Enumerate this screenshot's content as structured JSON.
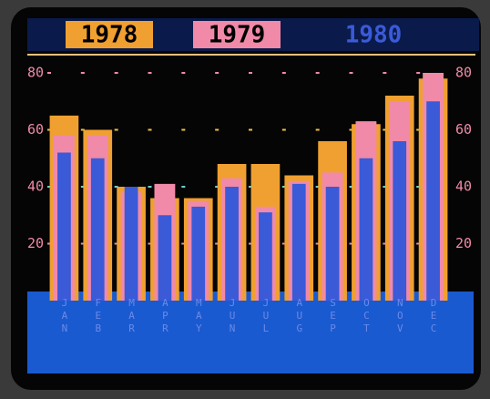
{
  "chart_data": {
    "type": "bar",
    "categories": [
      "JAN",
      "FEB",
      "MAR",
      "APR",
      "MAY",
      "JUN",
      "JUL",
      "AUG",
      "SEP",
      "OCT",
      "NOV",
      "DEC"
    ],
    "series": [
      {
        "name": "1978",
        "color": "#f0a030",
        "values": [
          65,
          60,
          40,
          36,
          36,
          48,
          48,
          44,
          56,
          62,
          72,
          78
        ]
      },
      {
        "name": "1979",
        "color": "#f08aa8",
        "values": [
          58,
          58,
          38,
          41,
          35,
          43,
          33,
          42,
          45,
          63,
          70,
          80
        ]
      },
      {
        "name": "1980",
        "color": "#3a5ad8",
        "values": [
          52,
          50,
          40,
          30,
          33,
          40,
          31,
          41,
          40,
          50,
          56,
          70
        ]
      }
    ],
    "ylim": [
      0,
      80
    ],
    "yticks": [
      20,
      40,
      60,
      80
    ],
    "grid": true
  }
}
